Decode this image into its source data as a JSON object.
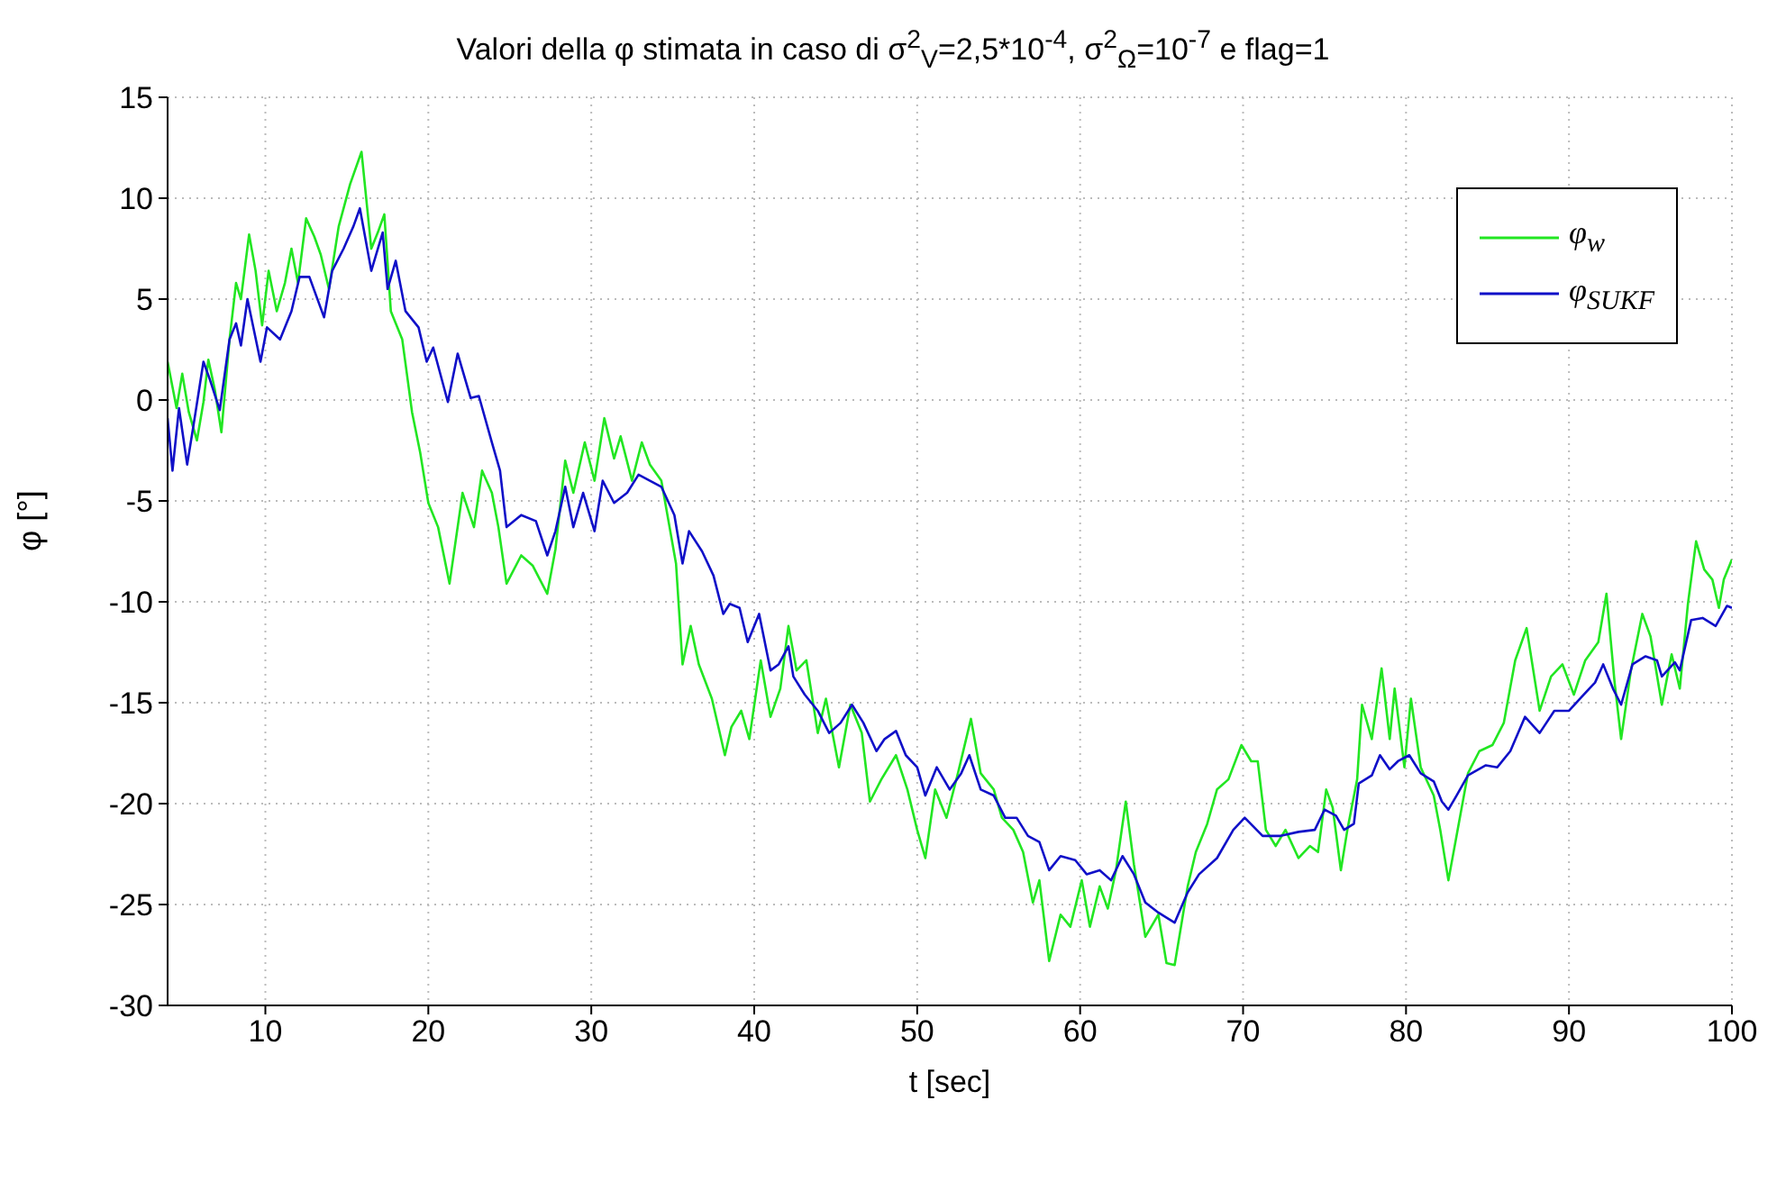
{
  "chart_data": {
    "type": "line",
    "title": "Valori della φ stimata in caso di σ$^{2}$$_{V}$=2,5*10$^{-4}$, σ$^{2}$$_{Ω}$=10$^{-7}$ e flag=1",
    "xlabel": "t [sec]",
    "ylabel": "φ [°]",
    "xlim": [
      4,
      100
    ],
    "xticks": [
      10,
      20,
      30,
      40,
      50,
      60,
      70,
      80,
      90,
      100
    ],
    "ylim": [
      -30,
      15
    ],
    "yticks": [
      -30,
      -25,
      -20,
      -15,
      -10,
      -5,
      0,
      5,
      10,
      15
    ],
    "grid": true,
    "legend": "top right",
    "line_style": "solid",
    "marker": "none",
    "series": [
      {
        "name": "φ$_{w}$",
        "color": "#22e622",
        "x": [
          4.0,
          4.55,
          4.9,
          5.3,
          5.8,
          6.2,
          6.5,
          6.9,
          7.3,
          7.8,
          8.2,
          8.5,
          9.0,
          9.4,
          9.8,
          10.2,
          10.7,
          11.2,
          11.6,
          12.0,
          12.5,
          13.0,
          13.4,
          13.9,
          14.5,
          15.2,
          15.9,
          16.5,
          16.9,
          17.3,
          17.7,
          18.4,
          19.0,
          19.5,
          20.0,
          20.6,
          21.3,
          22.1,
          22.8,
          23.3,
          23.9,
          24.3,
          24.8,
          25.7,
          26.4,
          27.3,
          27.8,
          28.4,
          28.9,
          29.6,
          30.2,
          30.8,
          31.4,
          31.8,
          32.5,
          33.1,
          33.6,
          34.3,
          35.2,
          35.6,
          36.1,
          36.6,
          37.4,
          38.2,
          38.6,
          39.2,
          39.7,
          40.4,
          41.0,
          41.6,
          42.1,
          42.6,
          43.2,
          43.9,
          44.4,
          45.2,
          45.9,
          46.6,
          47.1,
          47.8,
          48.7,
          49.4,
          50.0,
          50.5,
          51.1,
          51.8,
          52.5,
          53.3,
          53.9,
          54.7,
          55.2,
          55.9,
          56.5,
          57.1,
          57.5,
          58.1,
          58.8,
          59.4,
          60.1,
          60.6,
          61.2,
          61.7,
          62.2,
          62.8,
          63.3,
          64.0,
          64.8,
          65.3,
          65.8,
          66.6,
          67.1,
          67.8,
          68.4,
          69.1,
          69.9,
          70.5,
          70.9,
          71.4,
          72.0,
          72.6,
          73.4,
          74.1,
          74.6,
          75.1,
          75.5,
          76.0,
          76.4,
          77.0,
          77.3,
          77.9,
          78.5,
          79.0,
          79.3,
          79.9,
          80.3,
          80.9,
          81.7,
          82.1,
          82.6,
          83.1,
          83.8,
          84.5,
          85.3,
          86.0,
          86.7,
          87.4,
          88.2,
          88.9,
          89.6,
          90.3,
          91.0,
          91.8,
          92.3,
          92.8,
          93.2,
          93.8,
          94.5,
          95.0,
          95.7,
          96.3,
          96.8,
          97.3,
          97.8,
          98.3,
          98.8,
          99.2,
          99.5,
          100.0
        ],
        "values": [
          1.9,
          -0.4,
          1.3,
          -0.6,
          -2.0,
          -0.1,
          2.0,
          0.5,
          -1.6,
          3.0,
          5.8,
          5.0,
          8.2,
          6.4,
          3.7,
          6.4,
          4.4,
          5.8,
          7.5,
          5.8,
          9.0,
          8.1,
          7.2,
          5.5,
          8.6,
          10.7,
          12.3,
          7.5,
          8.3,
          9.2,
          4.4,
          3.0,
          -0.6,
          -2.6,
          -5.1,
          -6.3,
          -9.1,
          -4.6,
          -6.3,
          -3.5,
          -4.6,
          -6.3,
          -9.1,
          -7.7,
          -8.2,
          -9.6,
          -7.4,
          -3.0,
          -4.6,
          -2.1,
          -4.0,
          -0.9,
          -2.9,
          -1.8,
          -4.0,
          -2.1,
          -3.2,
          -4.0,
          -8.1,
          -13.1,
          -11.2,
          -13.1,
          -14.8,
          -17.6,
          -16.2,
          -15.4,
          -16.8,
          -12.9,
          -15.7,
          -14.3,
          -11.2,
          -13.4,
          -12.9,
          -16.5,
          -14.8,
          -18.2,
          -15.1,
          -16.5,
          -19.9,
          -18.8,
          -17.6,
          -19.3,
          -21.3,
          -22.7,
          -19.3,
          -20.7,
          -18.5,
          -15.8,
          -18.5,
          -19.3,
          -20.7,
          -21.3,
          -22.4,
          -24.9,
          -23.8,
          -27.8,
          -25.5,
          -26.1,
          -23.8,
          -26.1,
          -24.1,
          -25.2,
          -23.3,
          -19.9,
          -23.0,
          -26.6,
          -25.5,
          -27.9,
          -28.0,
          -24.1,
          -22.4,
          -21.0,
          -19.3,
          -18.8,
          -17.1,
          -17.9,
          -17.9,
          -21.3,
          -22.1,
          -21.3,
          -22.7,
          -22.1,
          -22.4,
          -19.3,
          -20.2,
          -23.3,
          -21.3,
          -18.8,
          -15.1,
          -16.8,
          -13.3,
          -16.8,
          -14.3,
          -18.2,
          -14.8,
          -18.2,
          -19.6,
          -21.3,
          -23.8,
          -21.6,
          -18.5,
          -17.4,
          -17.1,
          -16.0,
          -12.9,
          -11.3,
          -15.4,
          -13.7,
          -13.1,
          -14.6,
          -12.9,
          -12.0,
          -9.6,
          -14.0,
          -16.8,
          -13.4,
          -10.6,
          -11.7,
          -15.1,
          -12.6,
          -14.3,
          -10.1,
          -7.0,
          -8.4,
          -8.9,
          -10.3,
          -8.9,
          -7.9
        ]
      },
      {
        "name": "φ$_{SUKF}$",
        "color": "#1010c8",
        "x": [
          4.0,
          4.3,
          4.7,
          5.2,
          5.6,
          6.2,
          6.6,
          7.2,
          7.8,
          8.2,
          8.5,
          8.9,
          9.7,
          10.1,
          10.9,
          11.6,
          12.1,
          12.7,
          13.6,
          14.1,
          14.8,
          15.4,
          15.8,
          16.5,
          17.2,
          17.5,
          18.0,
          18.6,
          19.4,
          19.9,
          20.3,
          21.2,
          21.8,
          22.6,
          23.1,
          23.9,
          24.4,
          24.8,
          25.7,
          26.6,
          27.3,
          27.8,
          28.4,
          28.9,
          29.5,
          30.2,
          30.7,
          31.4,
          32.2,
          32.9,
          33.6,
          34.3,
          35.1,
          35.6,
          36.0,
          36.8,
          37.5,
          38.1,
          38.5,
          39.1,
          39.6,
          40.3,
          41.0,
          41.5,
          42.1,
          42.4,
          43.1,
          43.9,
          44.6,
          45.3,
          46.0,
          46.7,
          47.5,
          48.0,
          48.7,
          49.3,
          50.0,
          50.5,
          51.2,
          52.0,
          52.7,
          53.2,
          53.9,
          54.7,
          55.4,
          56.1,
          56.8,
          57.5,
          58.1,
          58.8,
          59.7,
          60.4,
          61.2,
          61.9,
          62.6,
          63.3,
          64.0,
          64.8,
          65.8,
          66.6,
          67.3,
          68.4,
          69.4,
          70.1,
          71.2,
          72.3,
          73.4,
          74.4,
          75.0,
          75.7,
          76.2,
          76.8,
          77.1,
          77.9,
          78.4,
          79.0,
          79.5,
          80.2,
          80.9,
          81.7,
          82.2,
          82.6,
          83.1,
          83.8,
          84.9,
          85.6,
          86.4,
          87.3,
          88.2,
          89.1,
          90.0,
          90.9,
          91.6,
          92.1,
          92.7,
          93.2,
          93.9,
          94.7,
          95.4,
          95.7,
          96.5,
          96.8,
          97.5,
          98.2,
          99.0,
          99.7,
          100.0
        ],
        "values": [
          -0.9,
          -3.5,
          -0.4,
          -3.2,
          -1.2,
          1.9,
          1.0,
          -0.5,
          3.0,
          3.8,
          2.7,
          5.0,
          1.9,
          3.6,
          3.0,
          4.4,
          6.1,
          6.1,
          4.1,
          6.4,
          7.5,
          8.6,
          9.5,
          6.4,
          8.3,
          5.5,
          6.9,
          4.4,
          3.6,
          1.9,
          2.6,
          -0.1,
          2.3,
          0.1,
          0.2,
          -2.1,
          -3.5,
          -6.3,
          -5.7,
          -6.0,
          -7.7,
          -6.5,
          -4.3,
          -6.3,
          -4.6,
          -6.5,
          -4.0,
          -5.1,
          -4.6,
          -3.7,
          -4.0,
          -4.3,
          -5.7,
          -8.1,
          -6.5,
          -7.5,
          -8.7,
          -10.6,
          -10.1,
          -10.3,
          -12.0,
          -10.6,
          -13.4,
          -13.1,
          -12.2,
          -13.7,
          -14.6,
          -15.4,
          -16.5,
          -16.0,
          -15.1,
          -16.0,
          -17.4,
          -16.8,
          -16.4,
          -17.6,
          -18.2,
          -19.6,
          -18.2,
          -19.3,
          -18.5,
          -17.6,
          -19.3,
          -19.6,
          -20.7,
          -20.7,
          -21.6,
          -21.9,
          -23.3,
          -22.6,
          -22.8,
          -23.5,
          -23.3,
          -23.8,
          -22.6,
          -23.5,
          -24.9,
          -25.4,
          -25.9,
          -24.4,
          -23.5,
          -22.7,
          -21.3,
          -20.7,
          -21.6,
          -21.6,
          -21.4,
          -21.3,
          -20.3,
          -20.6,
          -21.3,
          -21.0,
          -19.0,
          -18.6,
          -17.6,
          -18.3,
          -17.9,
          -17.6,
          -18.5,
          -18.9,
          -19.9,
          -20.3,
          -19.6,
          -18.6,
          -18.1,
          -18.2,
          -17.4,
          -15.7,
          -16.5,
          -15.4,
          -15.4,
          -14.6,
          -14.0,
          -13.1,
          -14.3,
          -15.1,
          -13.1,
          -12.7,
          -12.9,
          -13.7,
          -13.0,
          -13.4,
          -10.9,
          -10.8,
          -11.2,
          -10.2,
          -10.3
        ]
      }
    ]
  }
}
